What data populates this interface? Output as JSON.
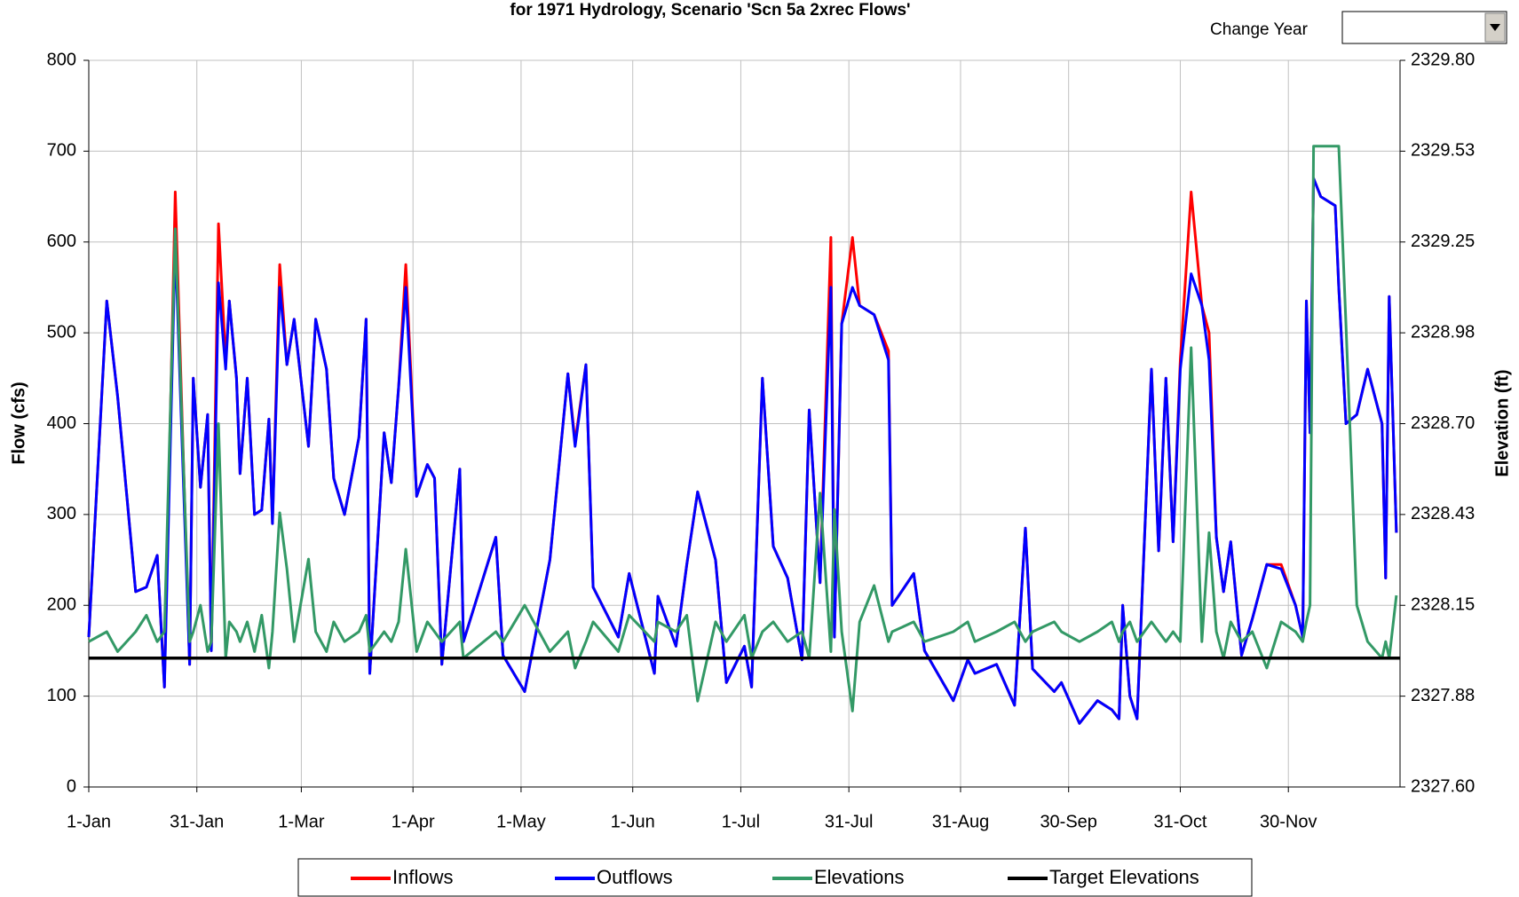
{
  "chart_data": {
    "type": "line",
    "title": "for 1971 Hydrology, Scenario 'Scn 5a 2xrec Flows'",
    "control_label": "Change Year",
    "y_label": "Flow (cfs)",
    "y2_label": "Elevation (ft)",
    "grid": true,
    "legend": "bottom",
    "xlim": [
      0,
      364
    ],
    "xticks": [
      {
        "value": 0,
        "label": "1-Jan"
      },
      {
        "value": 30,
        "label": "31-Jan"
      },
      {
        "value": 59,
        "label": "1-Mar"
      },
      {
        "value": 90,
        "label": "1-Apr"
      },
      {
        "value": 120,
        "label": "1-May"
      },
      {
        "value": 151,
        "label": "1-Jun"
      },
      {
        "value": 181,
        "label": "1-Jul"
      },
      {
        "value": 211,
        "label": "31-Jul"
      },
      {
        "value": 242,
        "label": "31-Aug"
      },
      {
        "value": 272,
        "label": "30-Sep"
      },
      {
        "value": 303,
        "label": "31-Oct"
      },
      {
        "value": 333,
        "label": "30-Nov"
      }
    ],
    "ylim": [
      0,
      800
    ],
    "yticks": [
      0,
      100,
      200,
      300,
      400,
      500,
      600,
      700,
      800
    ],
    "y2lim": [
      2327.6,
      2329.8
    ],
    "y2ticks": [
      {
        "value": 2327.6,
        "label": "2327.60"
      },
      {
        "value": 2327.875,
        "label": "2327.88"
      },
      {
        "value": 2328.15,
        "label": "2328.15"
      },
      {
        "value": 2328.425,
        "label": "2328.43"
      },
      {
        "value": 2328.7,
        "label": "2328.70"
      },
      {
        "value": 2328.975,
        "label": "2328.98"
      },
      {
        "value": 2329.25,
        "label": "2329.25"
      },
      {
        "value": 2329.525,
        "label": "2329.53"
      },
      {
        "value": 2329.8,
        "label": "2329.80"
      }
    ],
    "x": [
      0,
      5,
      8,
      13,
      16,
      19,
      21,
      24,
      28,
      29,
      31,
      33,
      34,
      36,
      38,
      39,
      41,
      42,
      44,
      46,
      48,
      50,
      51,
      53,
      55,
      57,
      61,
      63,
      66,
      68,
      71,
      75,
      77,
      78,
      82,
      84,
      86,
      88,
      91,
      94,
      96,
      98,
      103,
      104,
      113,
      115,
      121,
      128,
      133,
      135,
      138,
      140,
      147,
      150,
      157,
      158,
      163,
      166,
      169,
      174,
      177,
      182,
      184,
      187,
      190,
      194,
      198,
      200,
      203,
      206,
      207,
      209,
      212,
      214,
      218,
      222,
      223,
      229,
      232,
      240,
      244,
      246,
      252,
      257,
      260,
      262,
      268,
      270,
      275,
      280,
      284,
      286,
      287,
      289,
      291,
      295,
      297,
      299,
      301,
      303,
      306,
      309,
      311,
      313,
      315,
      317,
      320,
      323,
      327,
      331,
      335,
      337,
      338,
      339,
      340,
      342,
      346,
      347,
      349,
      352,
      355,
      359,
      360,
      361,
      363
    ],
    "series": [
      {
        "name": "Inflows",
        "color": "#ff0000",
        "values": [
          165,
          535,
          430,
          215,
          220,
          255,
          110,
          655,
          135,
          450,
          330,
          410,
          150,
          620,
          470,
          535,
          450,
          345,
          450,
          300,
          305,
          405,
          290,
          575,
          465,
          515,
          375,
          515,
          460,
          340,
          300,
          385,
          515,
          125,
          390,
          335,
          440,
          575,
          320,
          355,
          340,
          135,
          350,
          160,
          275,
          145,
          105,
          250,
          455,
          380,
          465,
          220,
          165,
          235,
          125,
          210,
          155,
          245,
          325,
          250,
          115,
          155,
          110,
          450,
          265,
          230,
          140,
          415,
          225,
          605,
          165,
          510,
          605,
          530,
          520,
          480,
          200,
          235,
          150,
          95,
          140,
          125,
          135,
          90,
          285,
          130,
          105,
          115,
          70,
          95,
          85,
          75,
          200,
          100,
          75,
          460,
          260,
          450,
          270,
          470,
          655,
          530,
          500,
          275,
          215,
          270,
          145,
          185,
          245,
          245,
          200,
          165,
          535,
          390,
          670,
          650,
          640,
          550,
          400,
          410,
          460,
          400,
          230,
          540,
          280
        ]
      },
      {
        "name": "Outflows",
        "color": "#0000ff",
        "values": [
          165,
          535,
          430,
          215,
          220,
          255,
          110,
          600,
          135,
          450,
          330,
          410,
          150,
          555,
          460,
          535,
          450,
          345,
          450,
          300,
          305,
          405,
          290,
          550,
          465,
          515,
          375,
          515,
          460,
          340,
          300,
          385,
          515,
          125,
          390,
          335,
          440,
          550,
          320,
          355,
          340,
          135,
          350,
          160,
          275,
          145,
          105,
          250,
          455,
          375,
          465,
          220,
          165,
          235,
          125,
          210,
          155,
          245,
          325,
          250,
          115,
          155,
          110,
          450,
          265,
          230,
          140,
          415,
          225,
          550,
          165,
          510,
          550,
          530,
          520,
          470,
          200,
          235,
          150,
          95,
          140,
          125,
          135,
          90,
          285,
          130,
          105,
          115,
          70,
          95,
          85,
          75,
          200,
          100,
          75,
          460,
          260,
          450,
          270,
          460,
          565,
          530,
          470,
          275,
          215,
          270,
          145,
          185,
          245,
          240,
          200,
          165,
          535,
          390,
          670,
          650,
          640,
          550,
          400,
          410,
          460,
          400,
          230,
          540,
          280
        ]
      },
      {
        "name": "Elevations",
        "color": "#339966",
        "axis": "y2",
        "values": [
          2328.04,
          2328.07,
          2328.01,
          2328.07,
          2328.12,
          2328.04,
          2328.07,
          2329.29,
          2328.04,
          2328.07,
          2328.15,
          2328.01,
          2328.04,
          2328.7,
          2327.99,
          2328.1,
          2328.07,
          2328.04,
          2328.1,
          2328.01,
          2328.12,
          2327.96,
          2328.07,
          2328.43,
          2328.26,
          2328.04,
          2328.29,
          2328.07,
          2328.01,
          2328.1,
          2328.04,
          2328.07,
          2328.12,
          2328.01,
          2328.07,
          2328.04,
          2328.1,
          2328.32,
          2328.01,
          2328.1,
          2328.07,
          2328.04,
          2328.1,
          2327.99,
          2328.07,
          2328.04,
          2328.15,
          2328.01,
          2328.07,
          2327.96,
          2328.04,
          2328.1,
          2328.01,
          2328.12,
          2328.04,
          2328.1,
          2328.07,
          2328.12,
          2327.86,
          2328.1,
          2328.04,
          2328.12,
          2327.99,
          2328.07,
          2328.1,
          2328.04,
          2328.07,
          2327.99,
          2328.49,
          2328.01,
          2328.44,
          2328.07,
          2327.83,
          2328.1,
          2328.21,
          2328.04,
          2328.07,
          2328.1,
          2328.04,
          2328.07,
          2328.1,
          2328.04,
          2328.07,
          2328.1,
          2328.04,
          2328.07,
          2328.1,
          2328.07,
          2328.04,
          2328.07,
          2328.1,
          2328.04,
          2328.07,
          2328.1,
          2328.04,
          2328.1,
          2328.07,
          2328.04,
          2328.07,
          2328.04,
          2328.93,
          2328.04,
          2328.37,
          2328.07,
          2327.99,
          2328.1,
          2328.04,
          2328.07,
          2327.96,
          2328.1,
          2328.07,
          2328.04,
          2328.1,
          2328.15,
          2329.54,
          2329.54,
          2329.54,
          2329.54,
          2329.0,
          2328.15,
          2328.04,
          2327.99,
          2328.04,
          2327.99,
          2328.18
        ]
      },
      {
        "name": "Target Elevations",
        "color": "#000000",
        "axis": "y2",
        "x": [
          0,
          364
        ],
        "values": [
          2327.99,
          2327.99
        ]
      }
    ]
  }
}
